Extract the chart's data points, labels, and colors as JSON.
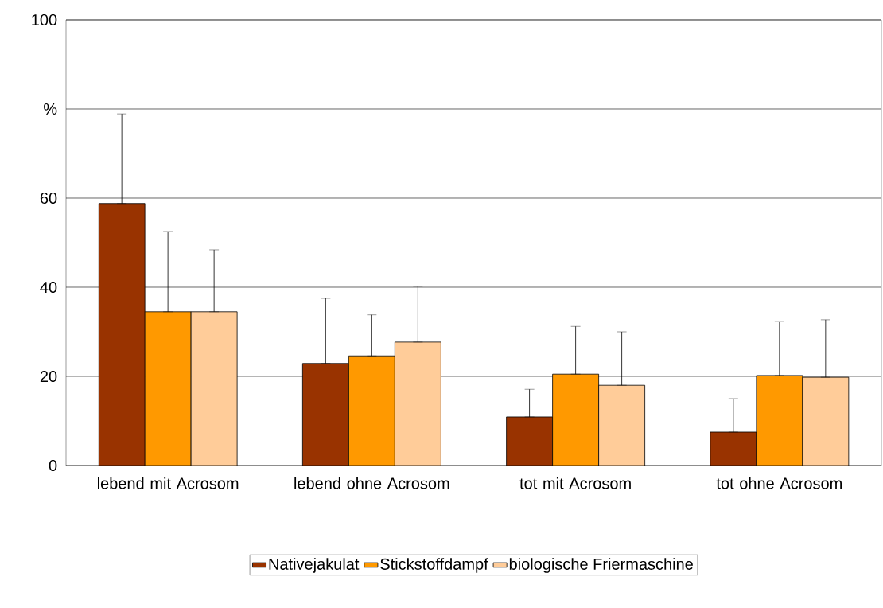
{
  "chart_data": {
    "type": "bar",
    "categories": [
      "lebend mit Acrosom",
      "lebend ohne Acrosom",
      "tot mit Acrosom",
      "tot ohne Acrosom"
    ],
    "series": [
      {
        "name": "Nativejakulat",
        "color": "#993300",
        "values": [
          58.8,
          22.9,
          10.9,
          7.5
        ],
        "errors": [
          [
            58.8,
            78.9
          ],
          [
            22.9,
            37.5
          ],
          [
            10.9,
            17.1
          ],
          [
            7.5,
            15.0
          ]
        ]
      },
      {
        "name": "Stickstoffdampf",
        "color": "#ff9900",
        "values": [
          34.5,
          24.6,
          20.5,
          20.2
        ],
        "errors": [
          [
            34.5,
            52.5
          ],
          [
            24.6,
            33.8
          ],
          [
            20.5,
            31.2
          ],
          [
            20.2,
            32.3
          ]
        ]
      },
      {
        "name": "biologische Friermaschine",
        "color": "#ffcc99",
        "values": [
          34.5,
          27.7,
          18.0,
          19.8
        ],
        "errors": [
          [
            34.5,
            48.4
          ],
          [
            27.7,
            40.2
          ],
          [
            18.0,
            30.0
          ],
          [
            19.8,
            32.7
          ]
        ]
      }
    ],
    "ylim": [
      0,
      100
    ],
    "yticks": [
      0,
      20,
      40,
      60,
      {
        "value": 80,
        "label": "%"
      },
      100
    ],
    "grid": "y",
    "legend": "bottom"
  }
}
